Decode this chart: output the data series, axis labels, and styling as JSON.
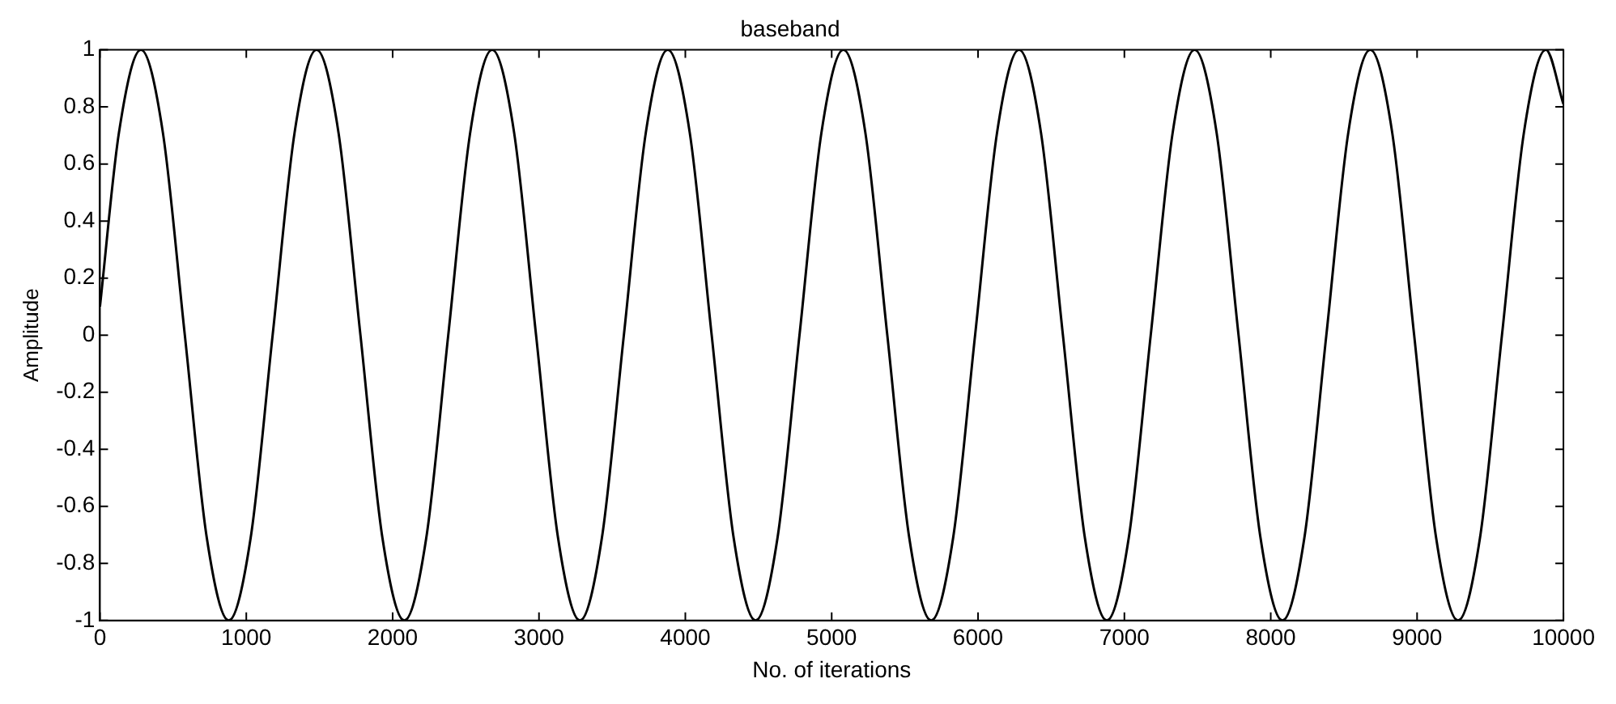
{
  "chart_data": {
    "type": "line",
    "title": "baseband",
    "xlabel": "No. of iterations",
    "ylabel": "Amplitude",
    "xlim": [
      0,
      10000
    ],
    "xticks": [
      0,
      1000,
      2000,
      3000,
      4000,
      5000,
      6000,
      7000,
      8000,
      9000,
      10000
    ],
    "ylim": [
      -1,
      1
    ],
    "yticks": [
      -1,
      -0.8,
      -0.6,
      -0.4,
      -0.2,
      0,
      0.2,
      0.4,
      0.6,
      0.8,
      1
    ],
    "grid": false,
    "legend": false,
    "marker": "none",
    "line_style": "solid",
    "series": [
      {
        "color": "#000000",
        "x": [
          0,
          130,
          280,
          430,
          580,
          730,
          880,
          1030,
          1180,
          1330,
          1480,
          1630,
          1780,
          1930,
          2080,
          2230,
          2380,
          2530,
          2680,
          2830,
          2980,
          3130,
          3280,
          3430,
          3580,
          3730,
          3880,
          4030,
          4180,
          4330,
          4480,
          4630,
          4780,
          4930,
          5080,
          5230,
          5380,
          5530,
          5680,
          5830,
          5980,
          6130,
          6280,
          6430,
          6580,
          6730,
          6880,
          7030,
          7180,
          7330,
          7480,
          7630,
          7780,
          7930,
          8080,
          8230,
          8380,
          8530,
          8680,
          8830,
          8980,
          9130,
          9280,
          9430,
          9580,
          9730,
          9880,
          10000
        ],
        "values": [
          0.1,
          0.71,
          1,
          0.71,
          0,
          -0.71,
          -1,
          -0.71,
          0,
          0.71,
          1,
          0.71,
          0,
          -0.71,
          -1,
          -0.71,
          0,
          0.71,
          1,
          0.71,
          0,
          -0.71,
          -1,
          -0.71,
          0,
          0.71,
          1,
          0.71,
          0,
          -0.71,
          -1,
          -0.71,
          0,
          0.71,
          1,
          0.71,
          0,
          -0.71,
          -1,
          -0.71,
          0,
          0.71,
          1,
          0.71,
          0,
          -0.71,
          -1,
          -0.71,
          0,
          0.71,
          1,
          0.71,
          0,
          -0.71,
          -1,
          -0.71,
          0,
          0.71,
          1,
          0.71,
          0,
          -0.71,
          -1,
          -0.71,
          0,
          0.71,
          1,
          0.81
        ]
      }
    ]
  }
}
